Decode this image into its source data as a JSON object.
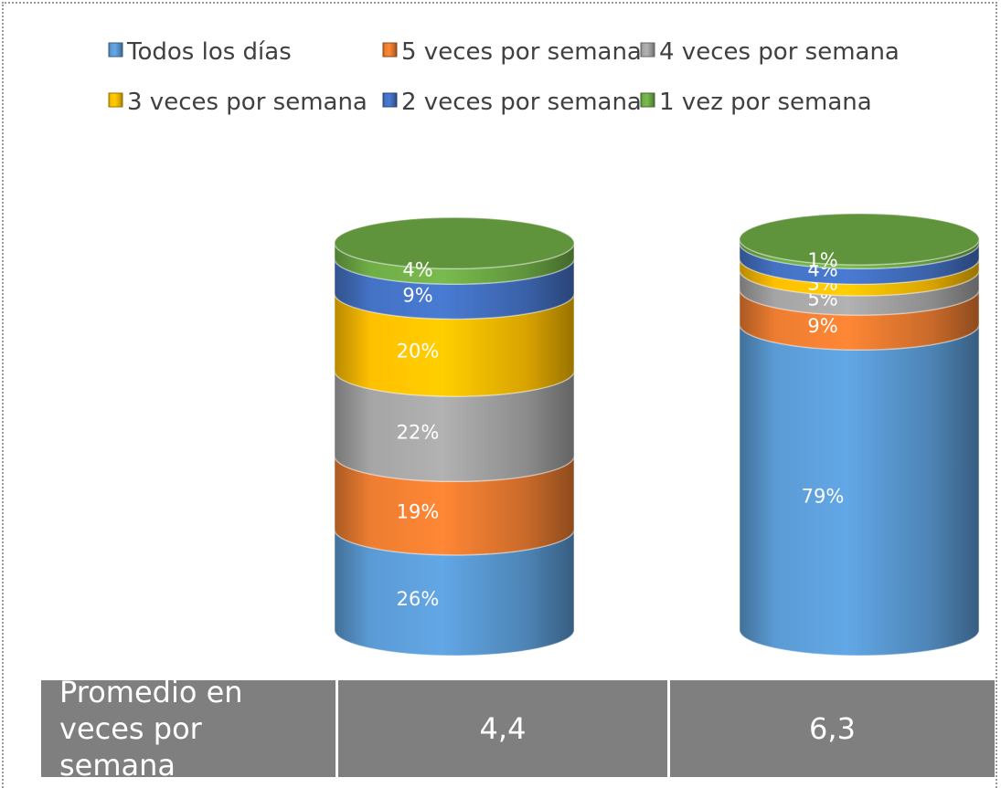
{
  "chart_data": {
    "type": "stacked-cylinder",
    "categories": [
      null,
      null
    ],
    "series": [
      {
        "name": "Todos los días",
        "color": "#5b9bd5",
        "values": [
          26,
          79
        ],
        "value_labels": [
          "26%",
          "79%"
        ]
      },
      {
        "name": "5 veces por semana",
        "color": "#ed7d31",
        "values": [
          19,
          9
        ],
        "value_labels": [
          "19%",
          "9%"
        ]
      },
      {
        "name": "4 veces por semana",
        "color": "#a5a5a5",
        "values": [
          22,
          5
        ],
        "value_labels": [
          "22%",
          "5%"
        ]
      },
      {
        "name": "3 veces por semana",
        "color": "#ffc000",
        "values": [
          20,
          3
        ],
        "value_labels": [
          "20%",
          "3%"
        ]
      },
      {
        "name": "2 veces por semana",
        "color": "#4472c4",
        "values": [
          9,
          4
        ],
        "value_labels": [
          "9%",
          "4%"
        ]
      },
      {
        "name": "1 vez por semana",
        "color": "#70ad47",
        "values": [
          4,
          1
        ],
        "value_labels": [
          "4%",
          "1%"
        ]
      }
    ],
    "legend": "top",
    "table": {
      "row_label": "Promedio en veces por semana",
      "cells": [
        "4,4",
        "6,3"
      ]
    }
  }
}
